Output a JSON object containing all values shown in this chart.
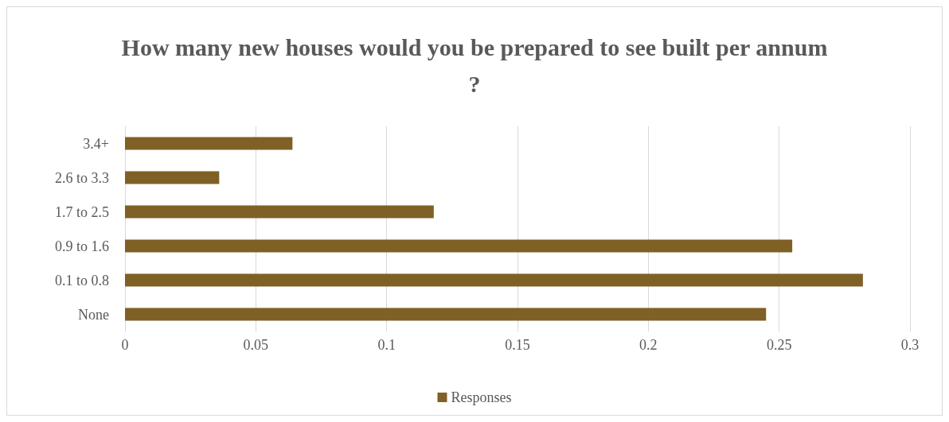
{
  "chart_data": {
    "type": "bar",
    "orientation": "horizontal",
    "title": "How many new houses would you be prepared to see built per annum?",
    "categories": [
      "3.4+",
      "2.6 to 3.3",
      "1.7 to 2.5",
      "0.9 to 1.6",
      "0.1 to 0.8",
      "None"
    ],
    "series": [
      {
        "name": "Responses",
        "color": "#7f6025",
        "values": [
          0.064,
          0.036,
          0.118,
          0.255,
          0.282,
          0.245
        ]
      }
    ],
    "xlim": [
      0,
      0.3
    ],
    "xticks": [
      0,
      0.05,
      0.1,
      0.15,
      0.2,
      0.25,
      0.3
    ],
    "grid": "x",
    "legend": "bottom"
  }
}
